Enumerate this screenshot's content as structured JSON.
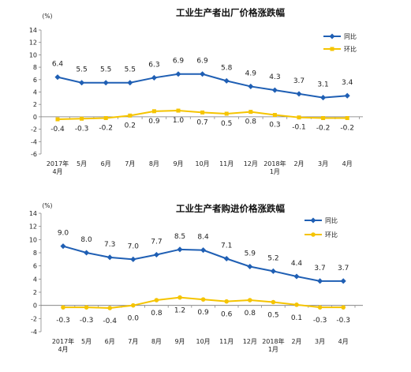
{
  "chart_data": [
    {
      "type": "line",
      "title": "工业生产者出厂价格涨跌幅",
      "unit": "(%)",
      "categories": [
        [
          "2017年",
          "4月"
        ],
        [
          "5月"
        ],
        [
          "6月"
        ],
        [
          "7月"
        ],
        [
          "8月"
        ],
        [
          "9月"
        ],
        [
          "10月"
        ],
        [
          "11月"
        ],
        [
          "12月"
        ],
        [
          "2018年",
          "1月"
        ],
        [
          "2月"
        ],
        [
          "3月"
        ],
        [
          "4月"
        ]
      ],
      "ylim": [
        -6,
        14
      ],
      "yticks": [
        -6,
        -4,
        -2,
        0,
        2,
        4,
        6,
        8,
        10,
        12,
        14
      ],
      "legend": "top-right",
      "series": [
        {
          "name": "同比",
          "color": "#1f5fb4",
          "marker": "diamond",
          "values": [
            6.4,
            5.5,
            5.5,
            5.5,
            6.3,
            6.9,
            6.9,
            5.8,
            4.9,
            4.3,
            3.7,
            3.1,
            3.4
          ],
          "labels": [
            "6.4",
            "5.5",
            "5.5",
            "5.5",
            "6.3",
            "6.9",
            "6.9",
            "5.8",
            "4.9",
            "4.3",
            "3.7",
            "3.1",
            "3.4"
          ]
        },
        {
          "name": "环比",
          "color": "#f5c400",
          "marker": "square",
          "values": [
            -0.4,
            -0.3,
            -0.2,
            0.2,
            0.9,
            1.0,
            0.7,
            0.5,
            0.8,
            0.3,
            -0.1,
            -0.2,
            -0.2
          ],
          "labels": [
            "-0.4",
            "-0.3",
            "-0.2",
            "0.2",
            "0.9",
            "1.0",
            "0.7",
            "0.5",
            "0.8",
            "0.3",
            "-0.1",
            "-0.2",
            "-0.2"
          ]
        }
      ]
    },
    {
      "type": "line",
      "title": "工业生产者购进价格涨跌幅",
      "unit": "(%)",
      "categories": [
        [
          "2017年",
          "4月"
        ],
        [
          "5月"
        ],
        [
          "6月"
        ],
        [
          "7月"
        ],
        [
          "8月"
        ],
        [
          "9月"
        ],
        [
          "10月"
        ],
        [
          "11月"
        ],
        [
          "12月"
        ],
        [
          "2018年",
          "1月"
        ],
        [
          "2月"
        ],
        [
          "3月"
        ],
        [
          "4月"
        ]
      ],
      "ylim": [
        -4,
        14
      ],
      "yticks": [
        -4,
        -2,
        0,
        2,
        4,
        6,
        8,
        10,
        12,
        14
      ],
      "legend": "top-right",
      "series": [
        {
          "name": "同比",
          "color": "#1f5fb4",
          "marker": "diamond",
          "values": [
            9.0,
            8.0,
            7.3,
            7.0,
            7.7,
            8.5,
            8.4,
            7.1,
            5.9,
            5.2,
            4.4,
            3.7,
            3.7
          ],
          "labels": [
            "9.0",
            "8.0",
            "7.3",
            "7.0",
            "7.7",
            "8.5",
            "8.4",
            "7.1",
            "5.9",
            "5.2",
            "4.4",
            "3.7",
            "3.7"
          ]
        },
        {
          "name": "环比",
          "color": "#f5c400",
          "marker": "circle",
          "values": [
            -0.3,
            -0.3,
            -0.4,
            0.0,
            0.8,
            1.2,
            0.9,
            0.6,
            0.8,
            0.5,
            0.1,
            -0.3,
            -0.3
          ],
          "labels": [
            "-0.3",
            "-0.3",
            "-0.4",
            "0.0",
            "0.8",
            "1.2",
            "0.9",
            "0.6",
            "0.8",
            "0.5",
            "0.1",
            "-0.3",
            "-0.3"
          ]
        }
      ]
    }
  ]
}
